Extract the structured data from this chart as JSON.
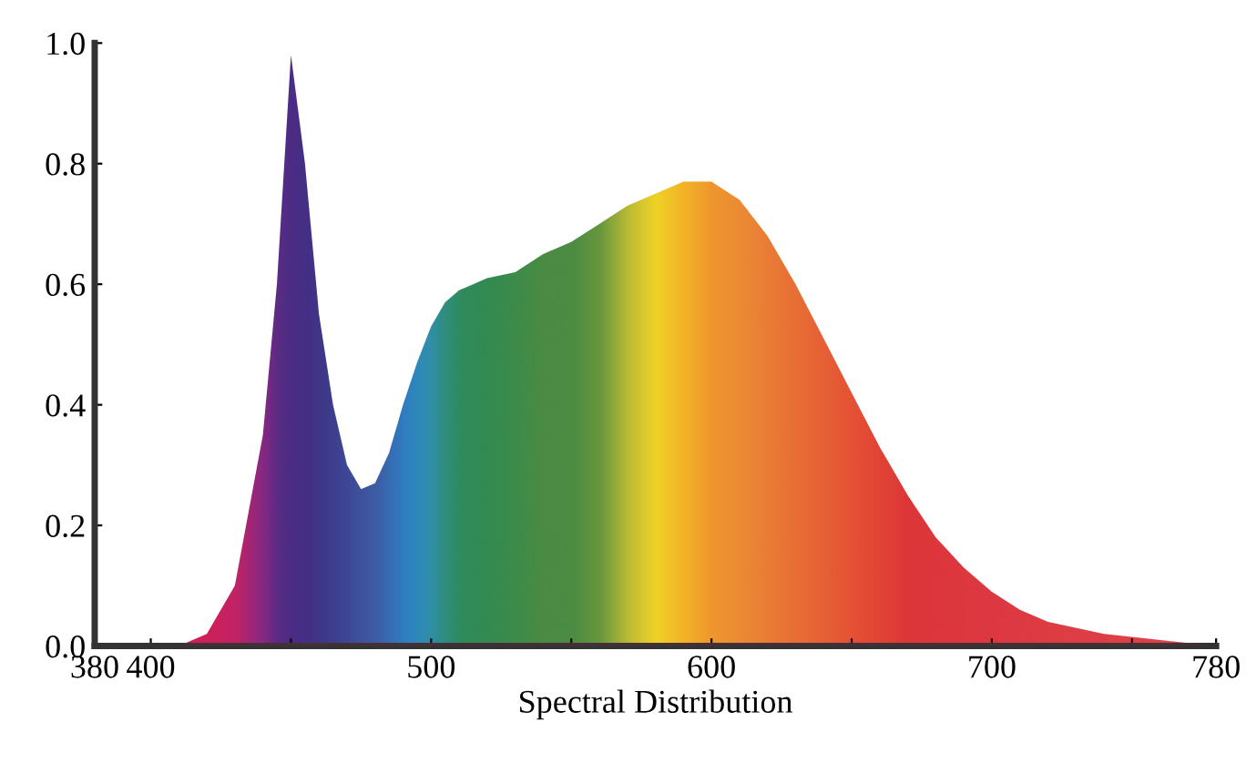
{
  "chart_data": {
    "type": "area",
    "xlabel": "Spectral Distribution",
    "x": [
      410,
      420,
      430,
      440,
      445,
      450,
      455,
      460,
      465,
      470,
      475,
      480,
      485,
      490,
      495,
      500,
      505,
      510,
      520,
      530,
      540,
      550,
      560,
      570,
      580,
      590,
      600,
      610,
      620,
      630,
      640,
      650,
      660,
      670,
      680,
      690,
      700,
      710,
      720,
      740,
      760,
      780
    ],
    "series": [
      {
        "values": [
          0,
          0.02,
          0.1,
          0.35,
          0.6,
          0.98,
          0.8,
          0.55,
          0.4,
          0.3,
          0.26,
          0.27,
          0.32,
          0.4,
          0.47,
          0.53,
          0.57,
          0.59,
          0.61,
          0.62,
          0.65,
          0.67,
          0.7,
          0.73,
          0.75,
          0.77,
          0.77,
          0.74,
          0.68,
          0.6,
          0.51,
          0.42,
          0.33,
          0.25,
          0.18,
          0.13,
          0.09,
          0.06,
          0.04,
          0.02,
          0.01,
          0
        ],
        "colors": [
          "#d0205a",
          "#d0205a",
          "#c02468",
          "#7a2a8a",
          "#4a2e8a",
          "#3a2e8a",
          "#32328c",
          "#2c3a8e",
          "#2a4496",
          "#2a4ea0",
          "#2a5aa8",
          "#2a66b0",
          "#2278c0",
          "#1a8ad0",
          "#1a98c8",
          "#1aa0b0",
          "#1a9c80",
          "#1a9a60",
          "#1e9a50",
          "#2a9a48",
          "#3a9a40",
          "#3a9a40",
          "#5aa83a",
          "#b8d030",
          "#f4ec20",
          "#f8c820",
          "#f4a828",
          "#f09a30",
          "#ee8a30",
          "#ec7a30",
          "#ea6a30",
          "#e85a30",
          "#e44a30",
          "#e03a34",
          "#e03a38",
          "#e03c3c",
          "#e03c40",
          "#e03e40",
          "#e04040",
          "#e04444",
          "#e04848",
          "#e04848"
        ]
      }
    ],
    "xlim": [
      380,
      780
    ],
    "ylim": [
      0,
      1.0
    ],
    "xticks": [
      380,
      400,
      {
        "value": 450,
        "label": null
      },
      500,
      {
        "value": 550,
        "label": null
      },
      600,
      {
        "value": 650,
        "label": null
      },
      700,
      {
        "value": 750,
        "label": null
      },
      780
    ],
    "yticks": [
      {
        "value": 0,
        "label": "0.0"
      },
      {
        "value": 0.2,
        "label": "0.2"
      },
      {
        "value": 0.4,
        "label": "0.4"
      },
      {
        "value": 0.6,
        "label": "0.6"
      },
      {
        "value": 0.8,
        "label": "0.8"
      },
      {
        "value": 1.0,
        "label": "1.0"
      }
    ],
    "grid": false
  }
}
